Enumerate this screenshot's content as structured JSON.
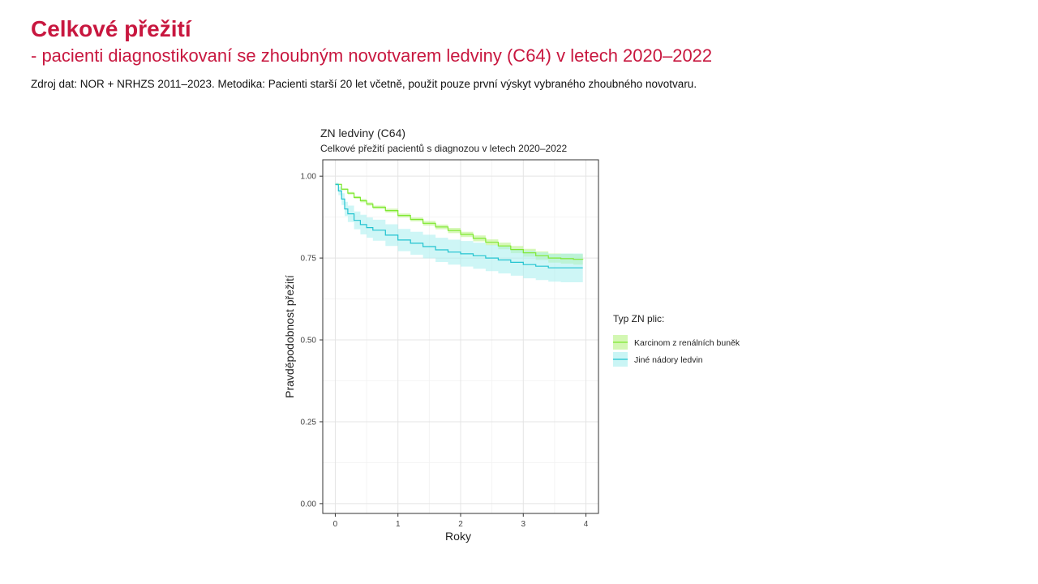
{
  "slide": {
    "title": "Celkové přežití",
    "subtitle": "- pacienti diagnostikovaní se zhoubným novotvarem ledviny (C64) v letech 2020–2022",
    "source": "Zdroj dat: NOR + NRHZS 2011–2023. Metodika: Pacienti starší 20 let včetně, použit pouze první výskyt vybraného zhoubného novotvaru."
  },
  "chart_data": {
    "type": "line",
    "title": "ZN ledviny (C64)",
    "subtitle": "Celkové přežití pacientů s diagnozou v letech 2020–2022",
    "xlabel": "Roky",
    "ylabel": "Pravděpodobnost přežití",
    "xlim": [
      -0.2,
      4.2
    ],
    "ylim": [
      -0.03,
      1.05
    ],
    "x_ticks": [
      0,
      1,
      2,
      3,
      4
    ],
    "x_tick_labels": [
      "0",
      "1",
      "2",
      "3",
      "4"
    ],
    "y_ticks": [
      0,
      0.25,
      0.5,
      0.75,
      1
    ],
    "y_tick_labels": [
      "0.00",
      "0.25",
      "0.50",
      "0.75",
      "1.00"
    ],
    "grid": true,
    "legend_title": "Typ ZN plic:",
    "legend_position": "right",
    "series": [
      {
        "name": "Karcinom z renálních buněk",
        "color": "#7fe830",
        "band_color": "#b6f280",
        "x": [
          0,
          0.1,
          0.2,
          0.3,
          0.4,
          0.5,
          0.6,
          0.8,
          1.0,
          1.2,
          1.4,
          1.6,
          1.8,
          2.0,
          2.2,
          2.4,
          2.6,
          2.8,
          3.0,
          3.2,
          3.4,
          3.6,
          3.8,
          3.95
        ],
        "y": [
          0.975,
          0.96,
          0.948,
          0.935,
          0.925,
          0.915,
          0.905,
          0.895,
          0.88,
          0.868,
          0.856,
          0.845,
          0.834,
          0.822,
          0.81,
          0.798,
          0.787,
          0.776,
          0.766,
          0.757,
          0.75,
          0.748,
          0.746,
          0.745
        ],
        "lower": [
          0.973,
          0.957,
          0.944,
          0.931,
          0.92,
          0.91,
          0.9,
          0.889,
          0.874,
          0.862,
          0.849,
          0.838,
          0.826,
          0.814,
          0.801,
          0.789,
          0.777,
          0.765,
          0.754,
          0.744,
          0.736,
          0.733,
          0.73,
          0.728
        ],
        "upper": [
          0.977,
          0.963,
          0.952,
          0.939,
          0.93,
          0.92,
          0.91,
          0.901,
          0.886,
          0.874,
          0.863,
          0.852,
          0.842,
          0.83,
          0.819,
          0.807,
          0.797,
          0.787,
          0.778,
          0.77,
          0.764,
          0.763,
          0.762,
          0.762
        ]
      },
      {
        "name": "Jiné nádory ledvin",
        "color": "#22c3d0",
        "band_color": "#a6eeef",
        "x": [
          0,
          0.05,
          0.1,
          0.15,
          0.2,
          0.3,
          0.4,
          0.5,
          0.6,
          0.8,
          1.0,
          1.2,
          1.4,
          1.6,
          1.8,
          2.0,
          2.2,
          2.4,
          2.6,
          2.8,
          3.0,
          3.2,
          3.4,
          3.6,
          3.8,
          3.95
        ],
        "y": [
          0.975,
          0.955,
          0.93,
          0.9,
          0.885,
          0.865,
          0.852,
          0.843,
          0.835,
          0.82,
          0.805,
          0.795,
          0.785,
          0.775,
          0.768,
          0.763,
          0.757,
          0.75,
          0.744,
          0.737,
          0.73,
          0.725,
          0.72,
          0.72,
          0.72,
          0.72
        ],
        "lower": [
          0.97,
          0.942,
          0.912,
          0.878,
          0.86,
          0.838,
          0.822,
          0.812,
          0.803,
          0.787,
          0.771,
          0.76,
          0.749,
          0.738,
          0.73,
          0.724,
          0.717,
          0.71,
          0.703,
          0.696,
          0.688,
          0.683,
          0.678,
          0.676,
          0.676,
          0.676
        ],
        "upper": [
          0.98,
          0.968,
          0.948,
          0.922,
          0.91,
          0.892,
          0.882,
          0.874,
          0.867,
          0.853,
          0.839,
          0.83,
          0.821,
          0.812,
          0.806,
          0.802,
          0.797,
          0.79,
          0.785,
          0.778,
          0.772,
          0.767,
          0.762,
          0.764,
          0.764,
          0.764
        ]
      }
    ]
  }
}
